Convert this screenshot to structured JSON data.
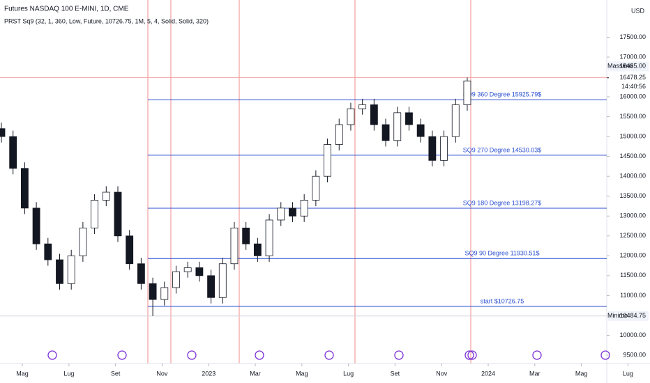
{
  "header": {
    "symbol": "Futures NASDAQ 100 E-MINI, 1D, CME",
    "indicator": "PRST Sq9 (32, 1, 360, Low, Future, 10726.75, 1M, 5, 4, Solid, Solid, 320)",
    "currency": "USD"
  },
  "chart_data": {
    "type": "candlestick",
    "x": [
      -0.9,
      -0.4,
      0.1,
      0.6,
      1.1,
      1.6,
      2.1,
      2.6,
      3.1,
      3.6,
      4.1,
      4.6,
      5.1,
      5.6,
      6.1,
      6.6,
      7.1,
      7.6,
      8.1,
      8.6,
      9.1,
      9.6,
      10.1,
      10.6,
      11.1,
      11.6,
      12.1,
      12.6,
      13.1,
      13.6,
      14.1,
      14.6,
      15.1,
      15.6,
      16.1,
      16.6,
      17.1,
      17.6,
      18.1,
      18.6,
      19.1
    ],
    "open": [
      15200,
      15000,
      14200,
      13200,
      12300,
      11900,
      11300,
      12000,
      12700,
      13400,
      13600,
      12500,
      11800,
      11300,
      10900,
      11200,
      11600,
      11700,
      11500,
      10950,
      11800,
      12700,
      12300,
      12000,
      12900,
      13200,
      13000,
      13400,
      14000,
      14800,
      15300,
      15700,
      15800,
      15300,
      14900,
      15600,
      15300,
      15000,
      14400,
      15000,
      15800
    ],
    "high": [
      15350,
      15150,
      14350,
      13350,
      12450,
      12050,
      12150,
      12850,
      13550,
      13750,
      13750,
      12650,
      11950,
      11450,
      11350,
      11750,
      11850,
      11850,
      11650,
      11950,
      12850,
      12850,
      12450,
      13050,
      13350,
      13350,
      13550,
      14150,
      14950,
      15450,
      15850,
      15950,
      15950,
      15450,
      15750,
      15750,
      15450,
      15150,
      15150,
      15950,
      16485
    ],
    "low": [
      14850,
      14050,
      13050,
      12150,
      11750,
      11150,
      11150,
      11850,
      12550,
      13250,
      12350,
      11650,
      11150,
      10484.75,
      10750,
      11050,
      11450,
      11350,
      10800,
      10800,
      11650,
      12150,
      11850,
      11850,
      12750,
      12850,
      12850,
      13250,
      13850,
      14650,
      15150,
      15550,
      15150,
      14750,
      14750,
      15150,
      14850,
      14250,
      14250,
      14850,
      15650
    ],
    "close": [
      15000,
      14200,
      13200,
      12300,
      11900,
      11300,
      12000,
      12700,
      13400,
      13600,
      12500,
      11800,
      11300,
      10900,
      11200,
      11600,
      11700,
      11500,
      10950,
      11800,
      12700,
      12300,
      12000,
      12900,
      13200,
      13000,
      13400,
      14000,
      14800,
      15300,
      15700,
      15800,
      15300,
      14900,
      15600,
      15300,
      15000,
      14400,
      15000,
      15800,
      16400
    ],
    "up_color": "#ffffff",
    "down_color": "#131722",
    "levels": [
      {
        "value": 15925.79,
        "label": "SQ9 360 Degree 15925.79$"
      },
      {
        "value": 14530.03,
        "label": "SQ9 270 Degree 14530.03$"
      },
      {
        "value": 13198.27,
        "label": "SQ9 180 Degree 13198.27$"
      },
      {
        "value": 11930.51,
        "label": "SQ9 90 Degree 11930.51$"
      },
      {
        "value": 10726.75,
        "label": "start $10726.75"
      }
    ],
    "level_color": "#2a4fd0",
    "max": {
      "name": "Massimo",
      "value": 16485,
      "label": "16485.00"
    },
    "min": {
      "name": "Minimo",
      "value": 10484.75,
      "label": "10484.75"
    },
    "last": {
      "value": 16478.25,
      "label": "16478.25",
      "countdown": "14:40:56"
    },
    "xlim": [
      -0.96,
      25.09
    ],
    "xticks": [
      {
        "value": 0,
        "label": "Mag"
      },
      {
        "value": 2,
        "label": "Lug"
      },
      {
        "value": 4,
        "label": "Set"
      },
      {
        "value": 6,
        "label": "Nov"
      },
      {
        "value": 8,
        "label": "2023"
      },
      {
        "value": 10,
        "label": "Mar"
      },
      {
        "value": 12,
        "label": "Mag"
      },
      {
        "value": 14,
        "label": "Lug"
      },
      {
        "value": 16,
        "label": "Set"
      },
      {
        "value": 18,
        "label": "Nov"
      },
      {
        "value": 20,
        "label": "2024"
      },
      {
        "value": 22,
        "label": "Mar"
      },
      {
        "value": 24,
        "label": "Mag"
      },
      {
        "value": 26,
        "label": "Lug"
      }
    ],
    "ylim": [
      9290,
      18436
    ],
    "yticks": [
      {
        "value": 9500,
        "label": "9500.00"
      },
      {
        "value": 10000,
        "label": "10000.00"
      },
      {
        "value": 11000,
        "label": "11000.00"
      },
      {
        "value": 11500,
        "label": "11500.00"
      },
      {
        "value": 12000,
        "label": "12000.00"
      },
      {
        "value": 12500,
        "label": "12500.00"
      },
      {
        "value": 13000,
        "label": "13000.00"
      },
      {
        "value": 13500,
        "label": "13500.00"
      },
      {
        "value": 14000,
        "label": "14000.00"
      },
      {
        "value": 14500,
        "label": "14500.00"
      },
      {
        "value": 15000,
        "label": "15000.00"
      },
      {
        "value": 15500,
        "label": "15500.00"
      },
      {
        "value": 16000,
        "label": "16000.00"
      },
      {
        "value": 17000,
        "label": "17000.00"
      },
      {
        "value": 17500,
        "label": "17500.00"
      }
    ]
  }
}
